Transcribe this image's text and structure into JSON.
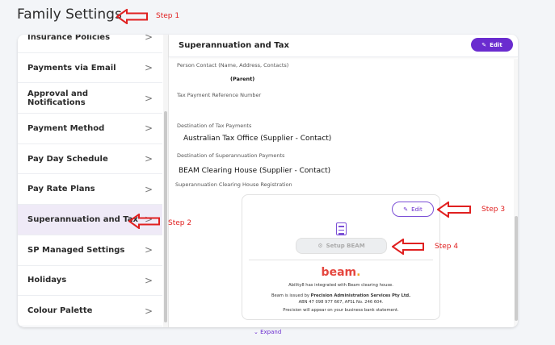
{
  "page": {
    "title": "Family Settings"
  },
  "sidebar": {
    "items": [
      {
        "label": "Insurance Policies"
      },
      {
        "label": "Payments via Email"
      },
      {
        "label": "Approval and Notifications"
      },
      {
        "label": "Payment Method"
      },
      {
        "label": "Pay Day Schedule"
      },
      {
        "label": "Pay Rate Plans"
      },
      {
        "label": "Superannuation and Tax",
        "active": true
      },
      {
        "label": "SP Managed Settings"
      },
      {
        "label": "Holidays"
      },
      {
        "label": "Colour Palette"
      }
    ]
  },
  "main": {
    "title": "Superannuation and Tax",
    "edit_label": "Edit",
    "fields": [
      {
        "label": "Person Contact (Name, Address, Contacts)",
        "value": "(Parent)"
      },
      {
        "label": "Tax Payment Reference Number",
        "value": ""
      },
      {
        "label": "Destination of Tax Payments",
        "value": "Australian Tax Office (Supplier - Contact)"
      },
      {
        "label": "Destination of Superannuation Payments",
        "value": "BEAM Clearing House (Supplier - Contact)"
      },
      {
        "label": "Superannuation Clearing House Registration"
      }
    ]
  },
  "beam": {
    "edit_label": "Edit",
    "setup_label": "Setup BEAM",
    "logo": "beam",
    "logo_dot": ".",
    "line1": "Ability8 has integrated with Beam clearing house.",
    "line2_prefix": "Beam is issued by ",
    "line2_bold": "Precision Administration Services Pty Ltd.",
    "line3": "ABN 47 098 977 667, AFSL No. 246 604.",
    "line4": "Precision will appear on your business bank statement."
  },
  "footer": {
    "expand_label": "Expand"
  },
  "annotations": {
    "step1": "Step 1",
    "step2": "Step 2",
    "step3": "Step 3",
    "step4": "Step 4",
    "color": "#e02020"
  },
  "colors": {
    "accent": "#6a2ccf",
    "active_bg": "#efeaf7"
  }
}
